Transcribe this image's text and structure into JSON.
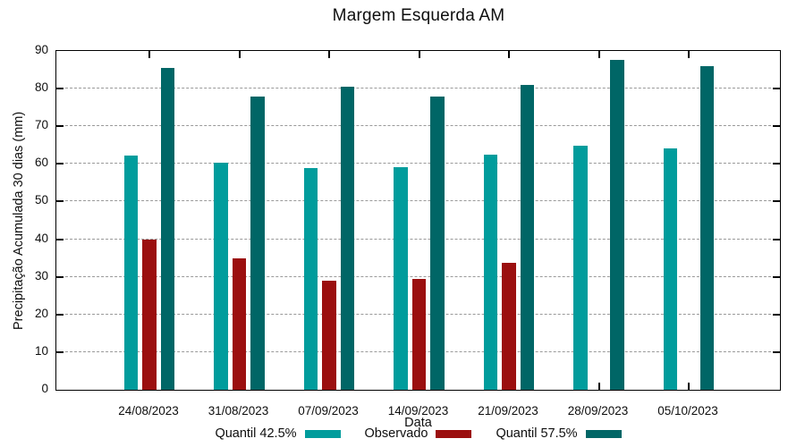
{
  "title": "Margem Esquerda AM",
  "chart_data": {
    "type": "bar",
    "title": "Margem Esquerda AM",
    "xlabel": "Data",
    "ylabel": "Precipitação Acumulada 30 dias (mm)",
    "ylim": [
      0,
      90
    ],
    "y_ticks": [
      0,
      10,
      20,
      30,
      40,
      50,
      60,
      70,
      80,
      90
    ],
    "grid": "dashed horizontal at 10-80",
    "legend_position": "bottom",
    "categories": [
      "24/08/2023",
      "31/08/2023",
      "07/09/2023",
      "14/09/2023",
      "21/09/2023",
      "28/09/2023",
      "05/10/2023"
    ],
    "series": [
      {
        "name": "Quantil 42.5%",
        "color": "#009c9c",
        "values": [
          62.2,
          60.3,
          59.0,
          59.2,
          62.4,
          64.8,
          64.1
        ]
      },
      {
        "name": "Observado",
        "color": "#9b0f0f",
        "values": [
          39.8,
          34.8,
          29.0,
          29.4,
          33.7,
          null,
          null
        ]
      },
      {
        "name": "Quantil 57.5%",
        "color": "#006666",
        "values": [
          85.4,
          78.0,
          80.5,
          78.0,
          81.0,
          87.7,
          85.9
        ]
      }
    ]
  },
  "colors": {
    "axis": "#000000",
    "grid": "#999999",
    "text": "#0e0e0e",
    "background": "#ffffff"
  }
}
